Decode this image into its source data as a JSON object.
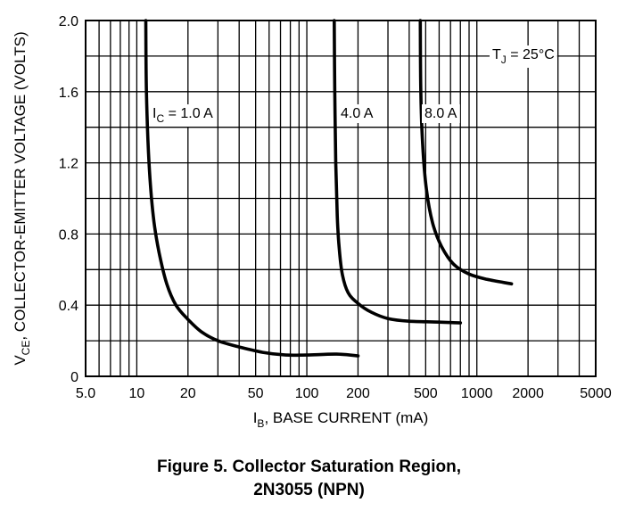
{
  "chart_data": {
    "type": "line",
    "title": "Figure 5. Collector Saturation Region,",
    "subtitle": "2N3055 (NPN)",
    "xlabel": {
      "main": "I",
      "sub": "B",
      "rest": ", BASE CURRENT (mA)"
    },
    "ylabel": {
      "main": "V",
      "sub": "CE",
      "rest": ", COLLECTOR-EMITTER VOLTAGE (VOLTS)"
    },
    "x_scale": "log",
    "xlim": [
      5,
      5000
    ],
    "ylim": [
      0,
      2.0
    ],
    "x_ticks": [
      5,
      10,
      20,
      50,
      100,
      200,
      500,
      1000,
      2000,
      5000
    ],
    "x_tick_labels": [
      "5.0",
      "10",
      "20",
      "50",
      "100",
      "200",
      "500",
      "1000",
      "2000",
      "5000"
    ],
    "y_ticks": [
      0,
      0.4,
      0.8,
      1.2,
      1.6,
      2.0
    ],
    "y_tick_labels": [
      "0",
      "0.4",
      "0.8",
      "1.2",
      "1.6",
      "2.0"
    ],
    "grid": true,
    "annotation": {
      "main": "T",
      "sub": "J",
      "rest": " = 25°C"
    },
    "series": [
      {
        "name": "1.0 A",
        "label": {
          "main": "I",
          "sub": "C",
          "rest": " = 1.0 A"
        },
        "points": [
          [
            11.3,
            2.0
          ],
          [
            11.4,
            1.6
          ],
          [
            11.8,
            1.2
          ],
          [
            12.5,
            0.9
          ],
          [
            13.5,
            0.7
          ],
          [
            15,
            0.52
          ],
          [
            17,
            0.4
          ],
          [
            20,
            0.32
          ],
          [
            24,
            0.25
          ],
          [
            30,
            0.2
          ],
          [
            40,
            0.165
          ],
          [
            55,
            0.135
          ],
          [
            75,
            0.12
          ],
          [
            100,
            0.12
          ],
          [
            150,
            0.125
          ],
          [
            200,
            0.115
          ]
        ]
      },
      {
        "name": "4.0 A",
        "label": {
          "main": "",
          "sub": "",
          "rest": "4.0 A"
        },
        "points": [
          [
            145,
            2.0
          ],
          [
            146,
            1.6
          ],
          [
            148,
            1.2
          ],
          [
            151,
            0.9
          ],
          [
            155,
            0.72
          ],
          [
            162,
            0.57
          ],
          [
            175,
            0.47
          ],
          [
            200,
            0.41
          ],
          [
            240,
            0.36
          ],
          [
            300,
            0.325
          ],
          [
            400,
            0.31
          ],
          [
            600,
            0.305
          ],
          [
            800,
            0.3
          ]
        ]
      },
      {
        "name": "8.0 A",
        "label": {
          "main": "",
          "sub": "",
          "rest": "8.0 A"
        },
        "points": [
          [
            465,
            2.0
          ],
          [
            468,
            1.6
          ],
          [
            480,
            1.3
          ],
          [
            505,
            1.05
          ],
          [
            550,
            0.86
          ],
          [
            620,
            0.73
          ],
          [
            730,
            0.63
          ],
          [
            900,
            0.575
          ],
          [
            1150,
            0.545
          ],
          [
            1600,
            0.52
          ]
        ]
      }
    ]
  }
}
